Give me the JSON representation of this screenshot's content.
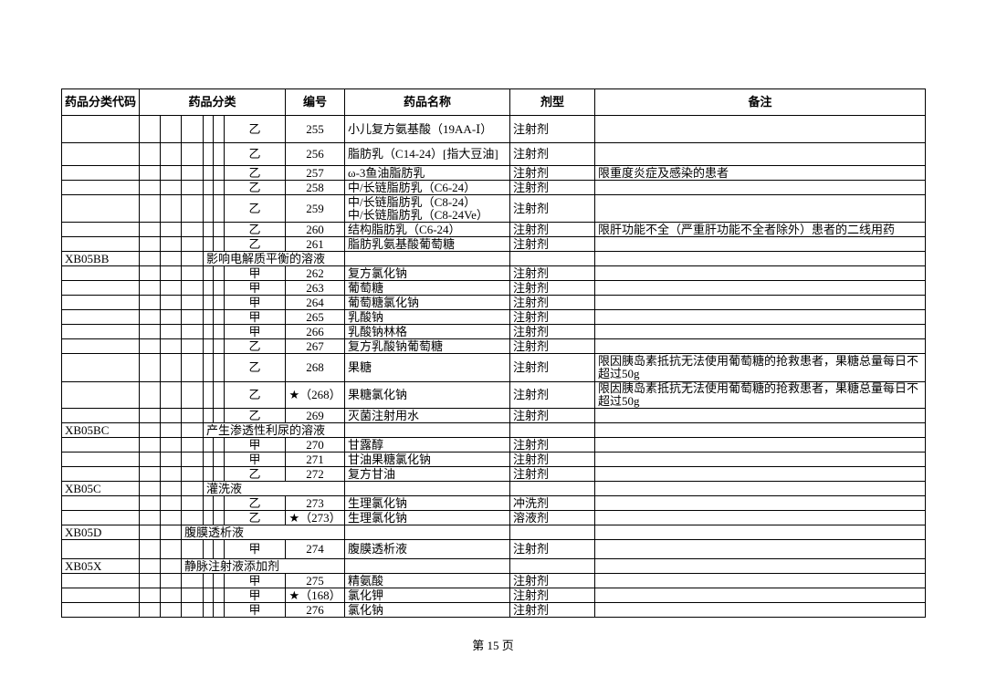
{
  "page": {
    "footer": "第 15 页"
  },
  "colors": {
    "border": "#000000",
    "text": "#000000",
    "background": "#ffffff"
  },
  "table": {
    "headers": {
      "code": "药品分类代码",
      "category": "药品分类",
      "number": "编号",
      "name": "药品名称",
      "form": "剂型",
      "remark": "备注"
    },
    "rows": [
      {
        "type": "drug",
        "cls": "乙",
        "number": "255",
        "name": "小儿复方氨基酸（19AA-Ⅰ）",
        "form": "注射剂",
        "remark": ""
      },
      {
        "type": "drug",
        "cls": "乙",
        "number": "256",
        "name": "脂肪乳（C14-24）[指大豆油]",
        "form": "注射剂",
        "remark": ""
      },
      {
        "type": "drug",
        "cls": "乙",
        "number": "257",
        "name": "ω-3鱼油脂肪乳",
        "form": "注射剂",
        "remark": "限重度炎症及感染的患者"
      },
      {
        "type": "drug",
        "cls": "乙",
        "number": "258",
        "name": "中/长链脂肪乳（C6-24）",
        "form": "注射剂",
        "remark": ""
      },
      {
        "type": "drug",
        "cls": "乙",
        "number": "259",
        "name": "中/长链脂肪乳（C8-24）\n中/长链脂肪乳（C8-24Ve）",
        "form": "注射剂",
        "remark": ""
      },
      {
        "type": "drug",
        "cls": "乙",
        "number": "260",
        "name": "结构脂肪乳（C6-24）",
        "form": "注射剂",
        "remark": "限肝功能不全（严重肝功能不全者除外）患者的二线用药"
      },
      {
        "type": "drug",
        "cls": "乙",
        "number": "261",
        "name": "脂肪乳氨基酸葡萄糖",
        "form": "注射剂",
        "remark": ""
      },
      {
        "type": "category",
        "code": "XB05BB",
        "label": "影响电解质平衡的溶液",
        "indent": 4
      },
      {
        "type": "drug",
        "cls": "甲",
        "number": "262",
        "name": "复方氯化钠",
        "form": "注射剂",
        "remark": ""
      },
      {
        "type": "drug",
        "cls": "甲",
        "number": "263",
        "name": "葡萄糖",
        "form": "注射剂",
        "remark": ""
      },
      {
        "type": "drug",
        "cls": "甲",
        "number": "264",
        "name": "葡萄糖氯化钠",
        "form": "注射剂",
        "remark": ""
      },
      {
        "type": "drug",
        "cls": "甲",
        "number": "265",
        "name": "乳酸钠",
        "form": "注射剂",
        "remark": ""
      },
      {
        "type": "drug",
        "cls": "甲",
        "number": "266",
        "name": "乳酸钠林格",
        "form": "注射剂",
        "remark": ""
      },
      {
        "type": "drug",
        "cls": "乙",
        "number": "267",
        "name": "复方乳酸钠葡萄糖",
        "form": "注射剂",
        "remark": ""
      },
      {
        "type": "drug",
        "cls": "乙",
        "number": "268",
        "name": "果糖",
        "form": "注射剂",
        "remark": "限因胰岛素抵抗无法使用葡萄糖的抢救患者，果糖总量每日不超过50g"
      },
      {
        "type": "drug",
        "cls": "乙",
        "number": "★（268）",
        "name": "果糖氯化钠",
        "form": "注射剂",
        "remark": "限因胰岛素抵抗无法使用葡萄糖的抢救患者，果糖总量每日不超过50g"
      },
      {
        "type": "drug",
        "cls": "乙",
        "number": "269",
        "name": "灭菌注射用水",
        "form": "注射剂",
        "remark": ""
      },
      {
        "type": "category",
        "code": "XB05BC",
        "label": "产生渗透性利尿的溶液",
        "indent": 4
      },
      {
        "type": "drug",
        "cls": "甲",
        "number": "270",
        "name": "甘露醇",
        "form": "注射剂",
        "remark": ""
      },
      {
        "type": "drug",
        "cls": "甲",
        "number": "271",
        "name": "甘油果糖氯化钠",
        "form": "注射剂",
        "remark": ""
      },
      {
        "type": "drug",
        "cls": "乙",
        "number": "272",
        "name": "复方甘油",
        "form": "注射剂",
        "remark": ""
      },
      {
        "type": "category",
        "code": "XB05C",
        "label": "灌洗液",
        "indent": 4
      },
      {
        "type": "drug",
        "cls": "乙",
        "number": "273",
        "name": "生理氯化钠",
        "form": "冲洗剂",
        "remark": ""
      },
      {
        "type": "drug",
        "cls": "乙",
        "number": "★（273）",
        "name": "生理氯化钠",
        "form": "溶液剂",
        "remark": ""
      },
      {
        "type": "category",
        "code": "XB05D",
        "label": "腹膜透析液",
        "indent": 3
      },
      {
        "type": "drug",
        "cls": "甲",
        "number": "274",
        "name": "腹膜透析液",
        "form": "注射剂",
        "remark": ""
      },
      {
        "type": "category",
        "code": "XB05X",
        "label": "静脉注射液添加剂",
        "indent": 3
      },
      {
        "type": "drug",
        "cls": "甲",
        "number": "275",
        "name": "精氨酸",
        "form": "注射剂",
        "remark": ""
      },
      {
        "type": "drug",
        "cls": "甲",
        "number": "★（168）",
        "name": "氯化钾",
        "form": "注射剂",
        "remark": ""
      },
      {
        "type": "drug",
        "cls": "甲",
        "number": "276",
        "name": "氯化钠",
        "form": "注射剂",
        "remark": ""
      }
    ]
  }
}
